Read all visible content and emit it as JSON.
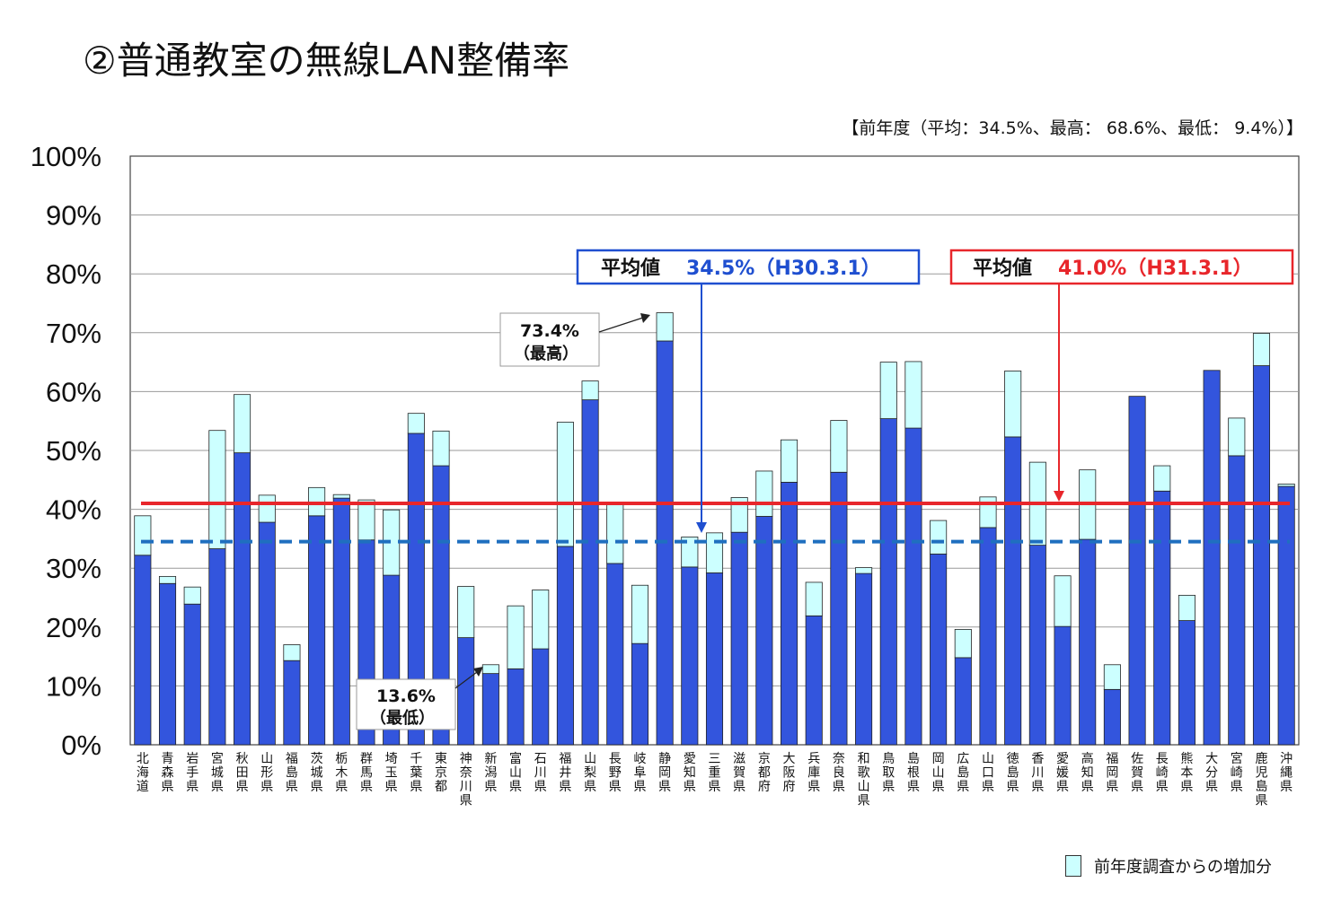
{
  "title": "②普通教室の無線LAN整備率",
  "previous_year_note": "【前年度（平均：34.5%、最高： 68.6%、最低： 9.4%）】",
  "legend": {
    "increase_label": "前年度調査からの増加分"
  },
  "colors": {
    "current_bar": "#3355dd",
    "increase_bar": "#ccffff",
    "avg_prev_line": "#1f6fbf",
    "avg_curr_line": "#e8262b",
    "avg_prev_text": "#1f4fd0",
    "avg_curr_text": "#e8262b"
  },
  "annotations": {
    "avg_prev": {
      "prefix": "平均値",
      "value": "34.5%（H30.3.1）"
    },
    "avg_curr": {
      "prefix": "平均値",
      "value": "41.0%（H31.3.1）"
    },
    "max": {
      "value": "73.4%",
      "label": "（最高）"
    },
    "min": {
      "value": "13.6%",
      "label": "（最低）"
    }
  },
  "chart_data": {
    "type": "bar",
    "stacked": true,
    "ylim": [
      0,
      100
    ],
    "yticks": [
      "0%",
      "10%",
      "20%",
      "30%",
      "40%",
      "50%",
      "60%",
      "70%",
      "80%",
      "90%",
      "100%"
    ],
    "grid": true,
    "reference_lines": [
      {
        "value": 34.5,
        "style": "dashed"
      },
      {
        "value": 41.0,
        "style": "solid"
      }
    ],
    "categories": [
      "北海道",
      "青森県",
      "岩手県",
      "宮城県",
      "秋田県",
      "山形県",
      "福島県",
      "茨城県",
      "栃木県",
      "群馬県",
      "埼玉県",
      "千葉県",
      "東京都",
      "神奈川県",
      "新潟県",
      "富山県",
      "石川県",
      "福井県",
      "山梨県",
      "長野県",
      "岐阜県",
      "静岡県",
      "愛知県",
      "三重県",
      "滋賀県",
      "京都府",
      "大阪府",
      "兵庫県",
      "奈良県",
      "和歌山県",
      "鳥取県",
      "島根県",
      "岡山県",
      "広島県",
      "山口県",
      "徳島県",
      "香川県",
      "愛媛県",
      "高知県",
      "福岡県",
      "佐賀県",
      "長崎県",
      "熊本県",
      "大分県",
      "宮崎県",
      "鹿児島県",
      "沖縄県"
    ],
    "series": [
      {
        "values": [
          32.2,
          27.4,
          23.9,
          33.3,
          49.6,
          37.8,
          14.3,
          38.9,
          41.9,
          34.8,
          28.8,
          52.9,
          47.4,
          18.2,
          12.1,
          12.9,
          16.3,
          33.7,
          58.6,
          30.8,
          17.2,
          68.6,
          30.2,
          29.2,
          36.1,
          38.8,
          44.6,
          21.9,
          46.3,
          29.1,
          55.4,
          53.8,
          32.4,
          14.8,
          36.9,
          52.3,
          33.9,
          20.1,
          34.9,
          9.4,
          59.2,
          43.1,
          21.1,
          63.6,
          49.1,
          64.4,
          43.9
        ]
      },
      {
        "name": "前年度調査からの増加分",
        "values": [
          6.7,
          1.2,
          2.9,
          20.1,
          9.9,
          4.6,
          2.7,
          4.8,
          0.6,
          6.8,
          11.1,
          3.4,
          5.9,
          8.7,
          1.5,
          10.7,
          10.0,
          21.1,
          3.2,
          10.4,
          9.9,
          4.8,
          5.1,
          6.8,
          5.9,
          7.7,
          7.2,
          5.7,
          8.8,
          1.0,
          9.6,
          11.3,
          5.7,
          4.8,
          5.2,
          11.2,
          14.1,
          8.6,
          11.8,
          4.2,
          0.0,
          4.3,
          4.3,
          0.0,
          6.4,
          5.5,
          0.4
        ]
      }
    ]
  }
}
